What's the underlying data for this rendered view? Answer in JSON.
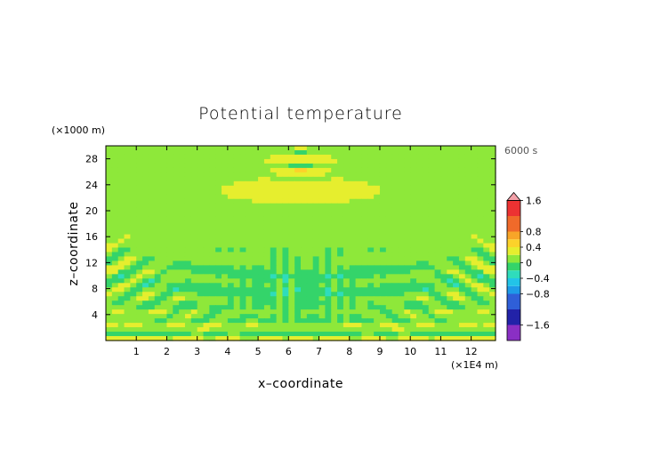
{
  "chart_data": {
    "type": "heatmap",
    "title": "Potential temperature",
    "xlabel": "x–coordinate",
    "ylabel": "z–coordinate",
    "x_unit": "(×1E4 m)",
    "y_unit": "(×1000 m)",
    "time_label": "6000 s",
    "xlim": [
      0,
      12.8
    ],
    "ylim": [
      0,
      30
    ],
    "x_ticks": [
      1,
      2,
      3,
      4,
      5,
      6,
      7,
      8,
      9,
      10,
      11,
      12
    ],
    "x_tick_labels": [
      "1",
      "2",
      "3",
      "4",
      "5",
      "6",
      "7",
      "8",
      "9",
      "10",
      "11",
      "12"
    ],
    "y_ticks": [
      4,
      8,
      12,
      16,
      20,
      24,
      28
    ],
    "y_tick_labels": [
      "4",
      "8",
      "12",
      "16",
      "20",
      "24",
      "28"
    ],
    "colorbar": {
      "range": [
        -2,
        2
      ],
      "tick_values": [
        1.6,
        0.8,
        0.4,
        0,
        -0.4,
        -0.8,
        -1.6
      ],
      "tick_labels": [
        "1.6",
        "0.8",
        "0.4",
        "0",
        "−0.4",
        "−0.8",
        "−1.6"
      ],
      "levels": [
        {
          "from": -2.0,
          "to": -1.6,
          "color": "#8a2fc4"
        },
        {
          "from": -1.6,
          "to": -1.2,
          "color": "#2222a8"
        },
        {
          "from": -1.2,
          "to": -0.8,
          "color": "#2f5fd8"
        },
        {
          "from": -0.8,
          "to": -0.6,
          "color": "#1e9be8"
        },
        {
          "from": -0.6,
          "to": -0.4,
          "color": "#22c4e8"
        },
        {
          "from": -0.4,
          "to": -0.2,
          "color": "#2fdcbc"
        },
        {
          "from": -0.2,
          "to": 0.0,
          "color": "#34d46a"
        },
        {
          "from": 0.0,
          "to": 0.2,
          "color": "#8ee83a"
        },
        {
          "from": 0.2,
          "to": 0.4,
          "color": "#e6ee2e"
        },
        {
          "from": 0.4,
          "to": 0.6,
          "color": "#fcd22a"
        },
        {
          "from": 0.6,
          "to": 0.8,
          "color": "#f8a528"
        },
        {
          "from": 0.8,
          "to": 1.2,
          "color": "#f06a2a"
        },
        {
          "from": 1.2,
          "to": 1.6,
          "color": "#ec3232"
        },
        {
          "from": 1.6,
          "to": 2.0,
          "color": "#f2a0a8"
        }
      ]
    }
  }
}
